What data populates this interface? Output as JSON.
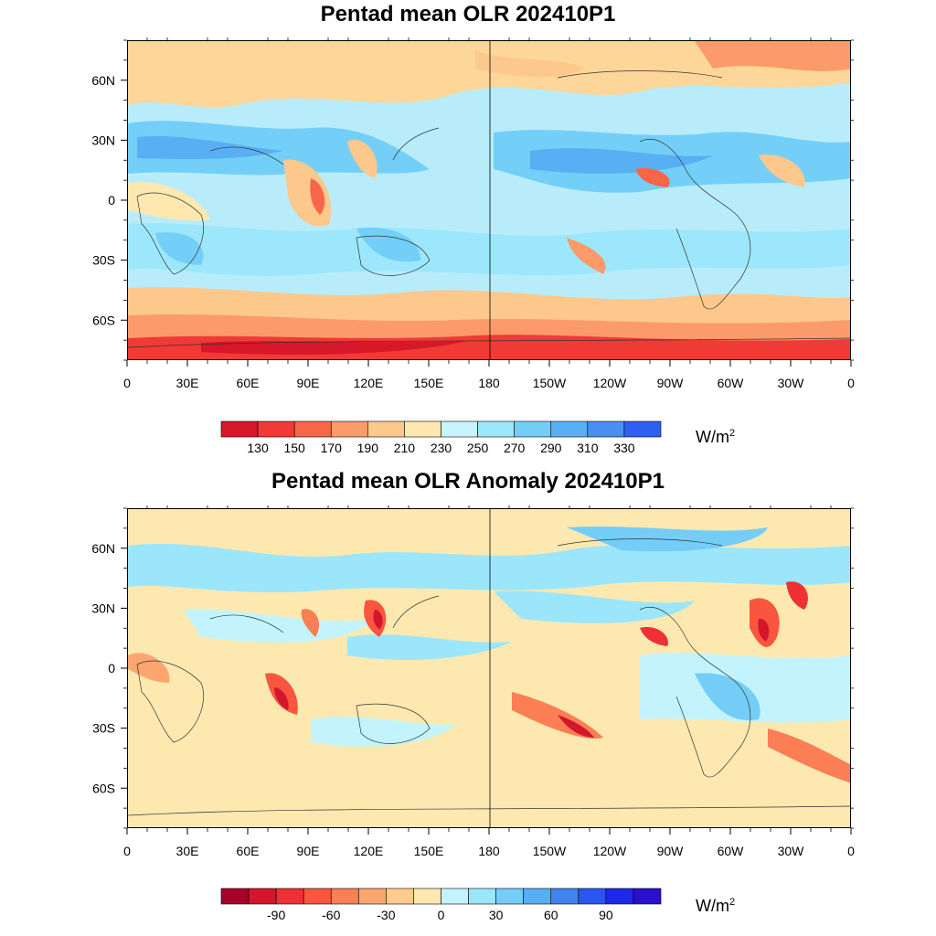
{
  "panels": [
    {
      "title": "Pentad mean OLR 202410P1",
      "colorbar": {
        "colors": [
          "#d7172a",
          "#ef3a35",
          "#f8664a",
          "#fc9b6a",
          "#fdc88b",
          "#fee8b0",
          "#c7f4fd",
          "#9ce7fb",
          "#74cff8",
          "#58aff4",
          "#4a8ef1",
          "#2e5ff0"
        ],
        "labels": [
          "130",
          "150",
          "170",
          "190",
          "210",
          "230",
          "250",
          "270",
          "290",
          "310",
          "330"
        ],
        "unit": "W/m",
        "unit_sup": "2"
      }
    },
    {
      "title": "Pentad mean OLR Anomaly 202410P1",
      "colorbar": {
        "colors": [
          "#a80029",
          "#d4162d",
          "#ef3034",
          "#f9553f",
          "#fb7e55",
          "#fca66f",
          "#fdcb8c",
          "#fee8b0",
          "#c3f4fd",
          "#9ce6fb",
          "#74cdf7",
          "#58aef4",
          "#3f84ef",
          "#2b55ef",
          "#1e28e8",
          "#2a0fcf"
        ],
        "labels": [
          "-90",
          "-60",
          "-30",
          "0",
          "30",
          "60",
          "90"
        ],
        "unit": "W/m",
        "unit_sup": "2"
      }
    }
  ],
  "axes": {
    "lon_labels": [
      "0",
      "30E",
      "60E",
      "90E",
      "120E",
      "150E",
      "180",
      "150W",
      "120W",
      "90W",
      "60W",
      "30W",
      "0"
    ],
    "lat_labels": [
      "60N",
      "30N",
      "0",
      "30S",
      "60S"
    ]
  }
}
